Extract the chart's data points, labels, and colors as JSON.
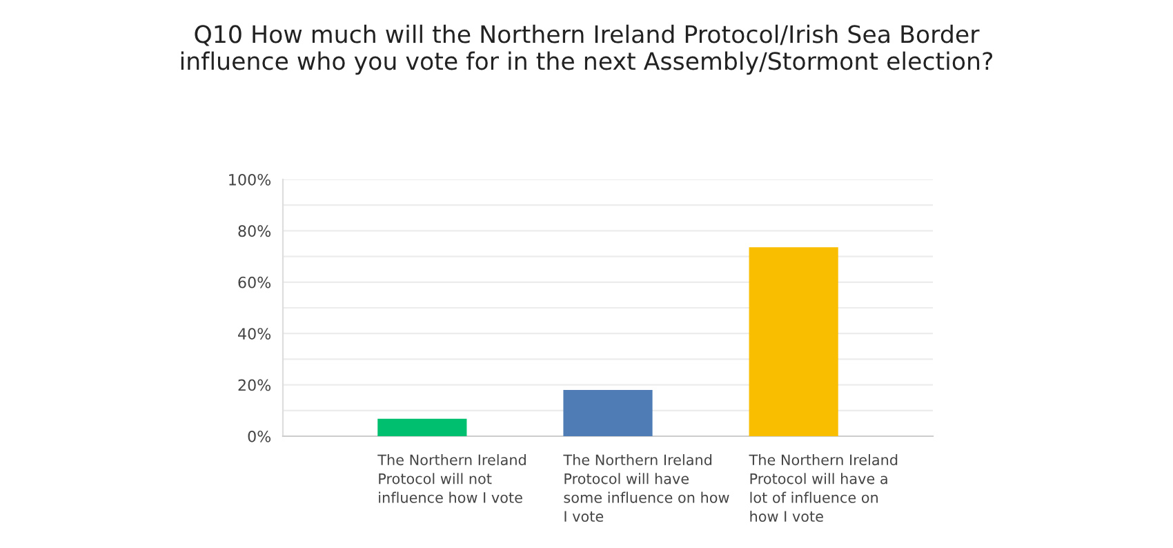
{
  "chart_data": {
    "type": "bar",
    "title": "Q10 How much will the Northern Ireland Protocol/Irish Sea Border\ninfluence who you vote for in the next Assembly/Stormont election?",
    "categories": [
      "The Northern Ireland\nProtocol will not\ninfluence how I vote",
      "The Northern Ireland\nProtocol will have\nsome influence on how\nI vote",
      "The Northern Ireland\nProtocol will have a\nlot of influence on\nhow I vote"
    ],
    "values": [
      6.8,
      18.0,
      73.6
    ],
    "colors": [
      "#00bf6f",
      "#507cb6",
      "#f9be00"
    ],
    "ylim": [
      0,
      100
    ],
    "yticks": [
      {
        "value": 0,
        "label": "0%"
      },
      {
        "value": 10,
        "label": null
      },
      {
        "value": 20,
        "label": "20%"
      },
      {
        "value": 30,
        "label": null
      },
      {
        "value": 40,
        "label": "40%"
      },
      {
        "value": 50,
        "label": null
      },
      {
        "value": 60,
        "label": "60%"
      },
      {
        "value": 70,
        "label": null
      },
      {
        "value": 80,
        "label": "80%"
      },
      {
        "value": 90,
        "label": null
      },
      {
        "value": 100,
        "label": "100%"
      }
    ],
    "grid": "y"
  }
}
